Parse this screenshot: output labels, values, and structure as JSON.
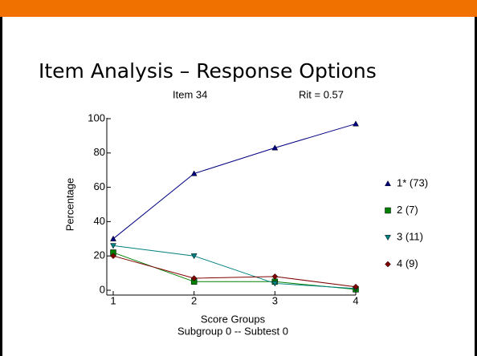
{
  "chart_data": {
    "type": "line",
    "title": "Item Analysis – Response Options",
    "subtitle_left": "Item 34",
    "subtitle_right": "Rit = 0.57",
    "x_label": "Score Groups",
    "x_label_2": "Subgroup 0 -- Subtest 0",
    "y_label": "Percentage",
    "x": [
      1,
      2,
      3,
      4
    ],
    "xlim": [
      1,
      4
    ],
    "xticks": [
      1,
      2,
      3,
      4
    ],
    "ylim": [
      0,
      100
    ],
    "yticks": [
      0,
      20,
      40,
      60,
      80,
      100
    ],
    "series": [
      {
        "name": "1* (73)",
        "color": "#000080",
        "marker": "triangle-up",
        "values": [
          30,
          68,
          83,
          97
        ]
      },
      {
        "name": "2 (7)",
        "color": "#008000",
        "marker": "square",
        "values": [
          22,
          5,
          5,
          0.5
        ]
      },
      {
        "name": "3 (11)",
        "color": "#008080",
        "marker": "triangle-down",
        "values": [
          26,
          20,
          4,
          1
        ]
      },
      {
        "name": "4 (9)",
        "color": "#800000",
        "marker": "diamond",
        "values": [
          20,
          7,
          8,
          2
        ]
      }
    ]
  }
}
